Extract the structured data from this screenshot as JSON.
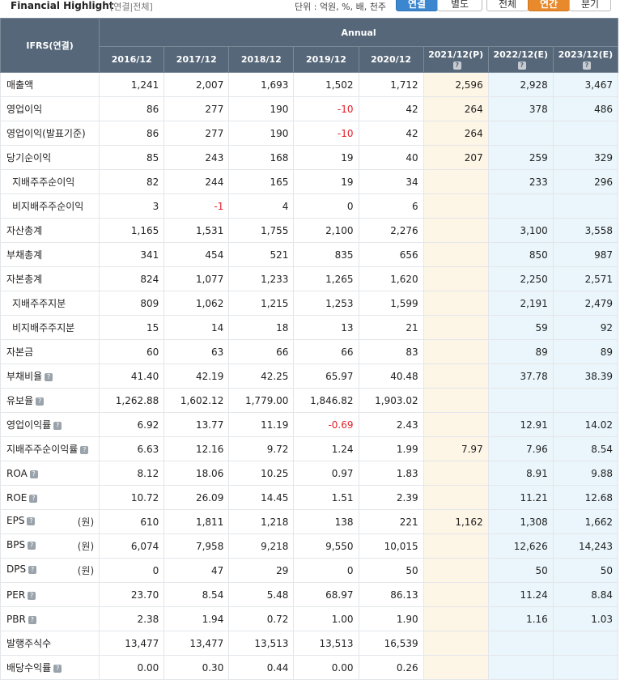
{
  "header": {
    "title": "Financial Highlight",
    "scope": "[연결|전체]",
    "unit": "단위 : 억원, %, 배, 천주",
    "buttons": [
      "연결",
      "별도",
      "전체",
      "연간",
      "분기"
    ]
  },
  "table": {
    "corner": "IFRS(연결)",
    "group": "Annual",
    "columns": [
      "2016/12",
      "2017/12",
      "2018/12",
      "2019/12",
      "2020/12",
      "2021/12(P)",
      "2022/12(E)",
      "2023/12(E)"
    ],
    "rows": [
      {
        "label": "매출액",
        "cells": [
          "1,241",
          "2,007",
          "1,693",
          "1,502",
          "1,712",
          "2,596",
          "2,928",
          "3,467"
        ]
      },
      {
        "label": "영업이익",
        "cells": [
          "86",
          "277",
          "190",
          "-10",
          "42",
          "264",
          "378",
          "486"
        ]
      },
      {
        "label": "영업이익(발표기준)",
        "cells": [
          "86",
          "277",
          "190",
          "-10",
          "42",
          "264",
          null,
          null
        ]
      },
      {
        "label": "당기순이익",
        "cells": [
          "85",
          "243",
          "168",
          "19",
          "40",
          "207",
          "259",
          "329"
        ]
      },
      {
        "label": "지배주주순이익",
        "cells": [
          "82",
          "244",
          "165",
          "19",
          "34",
          null,
          "233",
          "296"
        ]
      },
      {
        "label": "비지배주주순이익",
        "cells": [
          "3",
          "-1",
          "4",
          "0",
          "6",
          null,
          null,
          null
        ]
      },
      {
        "label": "자산총계",
        "cells": [
          "1,165",
          "1,531",
          "1,755",
          "2,100",
          "2,276",
          null,
          "3,100",
          "3,558"
        ]
      },
      {
        "label": "부채총계",
        "cells": [
          "341",
          "454",
          "521",
          "835",
          "656",
          null,
          "850",
          "987"
        ]
      },
      {
        "label": "자본총계",
        "cells": [
          "824",
          "1,077",
          "1,233",
          "1,265",
          "1,620",
          null,
          "2,250",
          "2,571"
        ]
      },
      {
        "label": "지배주주지분",
        "cells": [
          "809",
          "1,062",
          "1,215",
          "1,253",
          "1,599",
          null,
          "2,191",
          "2,479"
        ]
      },
      {
        "label": "비지배주주지분",
        "cells": [
          "15",
          "14",
          "18",
          "13",
          "21",
          null,
          "59",
          "92"
        ]
      },
      {
        "label": "자본금",
        "cells": [
          "60",
          "63",
          "66",
          "66",
          "83",
          null,
          "89",
          "89"
        ]
      },
      {
        "label": "부채비율",
        "cells": [
          "41.40",
          "42.19",
          "42.25",
          "65.97",
          "40.48",
          null,
          "37.78",
          "38.39"
        ]
      },
      {
        "label": "유보율",
        "cells": [
          "1,262.88",
          "1,602.12",
          "1,779.00",
          "1,846.82",
          "1,903.02",
          null,
          null,
          null
        ]
      },
      {
        "label": "영업이익률",
        "cells": [
          "6.92",
          "13.77",
          "11.19",
          "-0.69",
          "2.43",
          null,
          "12.91",
          "14.02"
        ]
      },
      {
        "label": "지배주주순이익률",
        "cells": [
          "6.63",
          "12.16",
          "9.72",
          "1.24",
          "1.99",
          "7.97",
          "7.96",
          "8.54"
        ]
      },
      {
        "label": "ROA",
        "cells": [
          "8.12",
          "18.06",
          "10.25",
          "0.97",
          "1.83",
          null,
          "8.91",
          "9.88"
        ]
      },
      {
        "label": "ROE",
        "cells": [
          "10.72",
          "26.09",
          "14.45",
          "1.51",
          "2.39",
          null,
          "11.21",
          "12.68"
        ]
      },
      {
        "label": "EPS",
        "unit": "(원)",
        "cells": [
          "610",
          "1,811",
          "1,218",
          "138",
          "221",
          "1,162",
          "1,308",
          "1,662"
        ]
      },
      {
        "label": "BPS",
        "unit": "(원)",
        "cells": [
          "6,074",
          "7,958",
          "9,218",
          "9,550",
          "10,015",
          null,
          "12,626",
          "14,243"
        ]
      },
      {
        "label": "DPS",
        "unit": "(원)",
        "cells": [
          "0",
          "47",
          "29",
          "0",
          "50",
          null,
          "50",
          "50"
        ]
      },
      {
        "label": "PER",
        "cells": [
          "23.70",
          "8.54",
          "5.48",
          "68.97",
          "86.13",
          null,
          "11.24",
          "8.84"
        ]
      },
      {
        "label": "PBR",
        "cells": [
          "2.38",
          "1.94",
          "0.72",
          "1.00",
          "1.90",
          null,
          "1.16",
          "1.03"
        ]
      },
      {
        "label": "발행주식수",
        "cells": [
          "13,477",
          "13,477",
          "13,513",
          "13,513",
          "16,539",
          null,
          null,
          null
        ]
      },
      {
        "label": "배당수익률",
        "cells": [
          "0.00",
          "0.30",
          "0.44",
          "0.00",
          "0.26",
          null,
          null,
          null
        ]
      }
    ]
  }
}
